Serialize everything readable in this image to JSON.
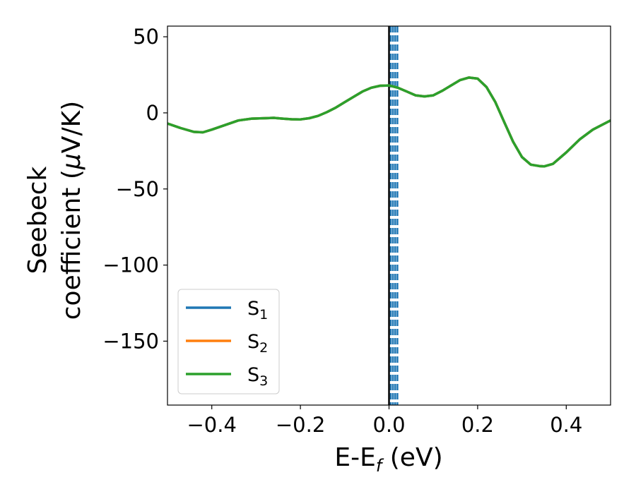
{
  "chart_data": {
    "type": "line",
    "xlabel": "E-E",
    "xlabel_sub": "f",
    "xlabel_unit": " (eV)",
    "ylabel_line1": "Seebeck",
    "ylabel_line2_pre": "coefficient  (",
    "ylabel_mu": "μ",
    "ylabel_line2_post": "V/K)",
    "xlim": [
      -0.5,
      0.5
    ],
    "ylim": [
      -192,
      57
    ],
    "x_ticks": [
      -0.4,
      -0.2,
      0.0,
      0.2,
      0.4
    ],
    "x_tick_labels": [
      "−0.4",
      "−0.2",
      "0.0",
      "0.2",
      "0.4"
    ],
    "y_ticks": [
      50,
      0,
      -50,
      -100,
      -150
    ],
    "y_tick_labels": [
      "50",
      "0",
      "−50",
      "−100",
      "−150"
    ],
    "legend_position": "lower-left",
    "fermi_line_x": 0.0,
    "dashed_lines_x": [
      0.004,
      0.009,
      0.014,
      0.019
    ],
    "series": [
      {
        "name": "S",
        "sub": "1",
        "color": "#1f77b4",
        "x": [
          -0.5,
          -0.47,
          -0.44,
          -0.42,
          -0.4,
          -0.37,
          -0.34,
          -0.31,
          -0.28,
          -0.26,
          -0.24,
          -0.22,
          -0.2,
          -0.18,
          -0.16,
          -0.14,
          -0.12,
          -0.1,
          -0.08,
          -0.06,
          -0.04,
          -0.02,
          0.0,
          0.02,
          0.04,
          0.06,
          0.08,
          0.1,
          0.12,
          0.14,
          0.16,
          0.18,
          0.2,
          0.22,
          0.24,
          0.26,
          0.28,
          0.3,
          0.32,
          0.34,
          0.35,
          0.37,
          0.4,
          0.43,
          0.46,
          0.5
        ],
        "y": [
          -7,
          -10,
          -12.5,
          -12.8,
          -11,
          -8,
          -5,
          -3.8,
          -3.5,
          -3.3,
          -3.8,
          -4.2,
          -4.3,
          -3.5,
          -2,
          0.5,
          3.5,
          7,
          10.5,
          14,
          16.5,
          17.8,
          18,
          16.5,
          14,
          11.5,
          10.8,
          11.5,
          14.5,
          18,
          21.5,
          23.2,
          22.5,
          17,
          7,
          -6,
          -19,
          -29,
          -34,
          -35,
          -35.2,
          -33.5,
          -26,
          -17.5,
          -11,
          -5
        ]
      },
      {
        "name": "S",
        "sub": "2",
        "color": "#ff7f0e",
        "x": [
          -0.5,
          -0.47,
          -0.44,
          -0.42,
          -0.4,
          -0.37,
          -0.34,
          -0.31,
          -0.28,
          -0.26,
          -0.24,
          -0.22,
          -0.2,
          -0.18,
          -0.16,
          -0.14,
          -0.12,
          -0.1,
          -0.08,
          -0.06,
          -0.04,
          -0.02,
          0.0,
          0.02,
          0.04,
          0.06,
          0.08,
          0.1,
          0.12,
          0.14,
          0.16,
          0.18,
          0.2,
          0.22,
          0.24,
          0.26,
          0.28,
          0.3,
          0.32,
          0.34,
          0.35,
          0.37,
          0.4,
          0.43,
          0.46,
          0.5
        ],
        "y": [
          -7,
          -10,
          -12.5,
          -12.8,
          -11,
          -8,
          -5,
          -3.8,
          -3.5,
          -3.3,
          -3.8,
          -4.2,
          -4.3,
          -3.5,
          -2,
          0.5,
          3.5,
          7,
          10.5,
          14,
          16.5,
          17.8,
          18,
          16.5,
          14,
          11.5,
          10.8,
          11.5,
          14.5,
          18,
          21.5,
          23.2,
          22.5,
          17,
          7,
          -6,
          -19,
          -29,
          -34,
          -35,
          -35.2,
          -33.5,
          -26,
          -17.5,
          -11,
          -5
        ]
      },
      {
        "name": "S",
        "sub": "3",
        "color": "#2ca02c",
        "x": [
          -0.5,
          -0.47,
          -0.44,
          -0.42,
          -0.4,
          -0.37,
          -0.34,
          -0.31,
          -0.28,
          -0.26,
          -0.24,
          -0.22,
          -0.2,
          -0.18,
          -0.16,
          -0.14,
          -0.12,
          -0.1,
          -0.08,
          -0.06,
          -0.04,
          -0.02,
          0.0,
          0.02,
          0.04,
          0.06,
          0.08,
          0.1,
          0.12,
          0.14,
          0.16,
          0.18,
          0.2,
          0.22,
          0.24,
          0.26,
          0.28,
          0.3,
          0.32,
          0.34,
          0.35,
          0.37,
          0.4,
          0.43,
          0.46,
          0.5
        ],
        "y": [
          -7,
          -10,
          -12.5,
          -12.8,
          -11,
          -8,
          -5,
          -3.8,
          -3.5,
          -3.3,
          -3.8,
          -4.2,
          -4.3,
          -3.5,
          -2,
          0.5,
          3.5,
          7,
          10.5,
          14,
          16.5,
          17.8,
          18,
          16.5,
          14,
          11.5,
          10.8,
          11.5,
          14.5,
          18,
          21.5,
          23.2,
          22.5,
          17,
          7,
          -6,
          -19,
          -29,
          -34,
          -35,
          -35.2,
          -33.5,
          -26,
          -17.5,
          -11,
          -5
        ]
      }
    ],
    "fermi_color": "#000000",
    "dashed_color": "#1f77b4"
  }
}
